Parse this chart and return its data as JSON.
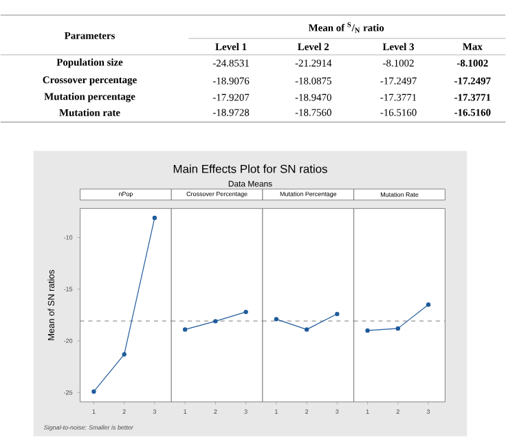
{
  "chart_data": [
    {
      "type": "other",
      "title": "Mean of $^{S}$/$_{N}$ ratio",
      "ylabel": "Parameters",
      "categories": [
        "Level 1",
        "Level 2",
        "Level 3",
        "Max"
      ],
      "y_categories": [
        "Population size",
        "Crossover percentage",
        "Mutation percentage",
        "Mutation rate"
      ],
      "cell_labels": [
        [
          "-24.8531",
          "-21.2914",
          "-8.1002",
          "-8.1002"
        ],
        [
          "-18.9076",
          "-18.0875",
          "-17.2497",
          "-17.2497"
        ],
        [
          "-17.9207",
          "-18.9470",
          "-17.3771",
          "-17.3771"
        ],
        [
          "-18.9728",
          "-18.7560",
          "-16.5160",
          "-16.5160"
        ]
      ]
    },
    {
      "type": "other",
      "title": "Main Effects Plot for SN ratios",
      "subtitle": "Data Means",
      "annotations": [
        "Signal-to-noise: Smaller is better"
      ]
    },
    {
      "type": "line",
      "title": "nPop",
      "ylabel": "Mean of SN ratios",
      "categories": [
        "1",
        "2",
        "3"
      ],
      "values": [
        -24.9,
        -21.3,
        -8.1
      ],
      "color": "#1f5b9c",
      "marker": "circle",
      "ylim": [
        -25.9,
        -7.2
      ],
      "yticks": [
        -25,
        -20,
        -15,
        -10
      ],
      "ref_lines": [
        {
          "axis": "y",
          "value": -18.08,
          "color": "#555555",
          "line_style": "dashed"
        }
      ]
    },
    {
      "type": "line",
      "title": "Crossover Percentage",
      "categories": [
        "1",
        "2",
        "3"
      ],
      "values": [
        -18.9,
        -18.1,
        -17.2
      ],
      "color": "#1f5b9c",
      "marker": "circle",
      "ylim": [
        -25.9,
        -7.2
      ],
      "yticks": [
        -25,
        -20,
        -15,
        -10
      ],
      "tick_labels": "x",
      "ref_lines": [
        {
          "axis": "y",
          "value": -18.08,
          "color": "#555555",
          "line_style": "dashed"
        }
      ]
    },
    {
      "type": "line",
      "title": "Mutation Percentage",
      "categories": [
        "1",
        "2",
        "3"
      ],
      "values": [
        -17.9,
        -18.9,
        -17.4
      ],
      "color": "#1f5b9c",
      "marker": "circle",
      "ylim": [
        -25.9,
        -7.2
      ],
      "yticks": [
        -25,
        -20,
        -15,
        -10
      ],
      "tick_labels": "x",
      "ref_lines": [
        {
          "axis": "y",
          "value": -18.08,
          "color": "#555555",
          "line_style": "dashed"
        }
      ]
    },
    {
      "type": "line",
      "title": "Mutation Rate",
      "categories": [
        "1",
        "2",
        "3"
      ],
      "values": [
        -19.0,
        -18.8,
        -16.5
      ],
      "color": "#1f5b9c",
      "marker": "circle",
      "ylim": [
        -25.9,
        -7.2
      ],
      "yticks": [
        -25,
        -20,
        -15,
        -10
      ],
      "tick_labels": "x",
      "ref_lines": [
        {
          "axis": "y",
          "value": -18.08,
          "color": "#555555",
          "line_style": "dashed"
        }
      ]
    }
  ]
}
